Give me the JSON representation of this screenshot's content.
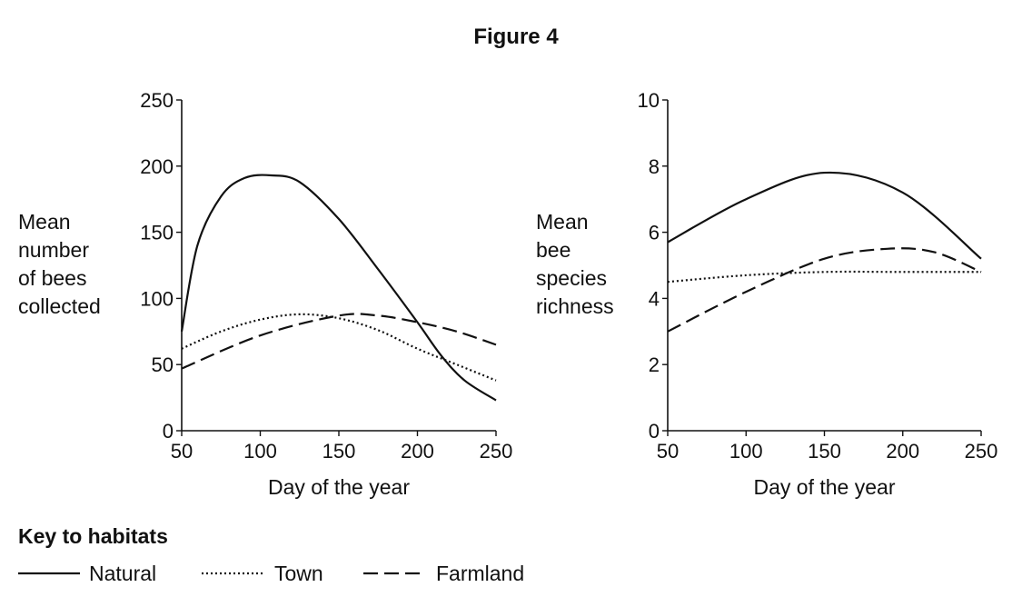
{
  "title": "Figure 4",
  "key": {
    "title": "Key to habitats",
    "items": [
      {
        "label": "Natural",
        "style": "solid"
      },
      {
        "label": "Town",
        "style": "dotted"
      },
      {
        "label": "Farmland",
        "style": "dashed"
      }
    ]
  },
  "chart_data": [
    {
      "type": "line",
      "xlabel": "Day of the year",
      "ylabel": [
        "Mean",
        "number",
        "of bees",
        "collected"
      ],
      "xlim": [
        50,
        250
      ],
      "ylim": [
        0,
        250
      ],
      "xticks": [
        50,
        100,
        150,
        200,
        250
      ],
      "yticks": [
        0,
        50,
        100,
        150,
        200,
        250
      ],
      "grid": false,
      "series": [
        {
          "name": "Natural",
          "style": "solid",
          "x": [
            50,
            60,
            75,
            90,
            107,
            125,
            150,
            175,
            200,
            215,
            230,
            250
          ],
          "y": [
            75,
            140,
            177,
            191,
            193,
            188,
            160,
            122,
            82,
            57,
            38,
            23
          ]
        },
        {
          "name": "Town",
          "style": "dotted",
          "x": [
            50,
            75,
            100,
            125,
            150,
            175,
            200,
            225,
            250
          ],
          "y": [
            62,
            75,
            84,
            88,
            85,
            76,
            62,
            50,
            38
          ]
        },
        {
          "name": "Farmland",
          "style": "dashed",
          "x": [
            50,
            100,
            150,
            175,
            200,
            225,
            250
          ],
          "y": [
            47,
            72,
            87,
            87,
            82,
            75,
            65
          ]
        }
      ]
    },
    {
      "type": "line",
      "xlabel": "Day of the year",
      "ylabel": [
        "Mean",
        "bee",
        "species",
        "richness"
      ],
      "xlim": [
        50,
        250
      ],
      "ylim": [
        0,
        10
      ],
      "xticks": [
        50,
        100,
        150,
        200,
        250
      ],
      "yticks": [
        0,
        2,
        4,
        6,
        8,
        10
      ],
      "grid": false,
      "series": [
        {
          "name": "Natural",
          "style": "solid",
          "x": [
            50,
            100,
            150,
            200,
            250
          ],
          "y": [
            5.7,
            7.0,
            7.8,
            7.2,
            5.2
          ]
        },
        {
          "name": "Town",
          "style": "dotted",
          "x": [
            50,
            100,
            150,
            200,
            250
          ],
          "y": [
            4.5,
            4.7,
            4.8,
            4.8,
            4.8
          ]
        },
        {
          "name": "Farmland",
          "style": "dashed",
          "x": [
            50,
            100,
            150,
            190,
            220,
            250
          ],
          "y": [
            3.0,
            4.2,
            5.2,
            5.5,
            5.4,
            4.8
          ]
        }
      ]
    }
  ]
}
